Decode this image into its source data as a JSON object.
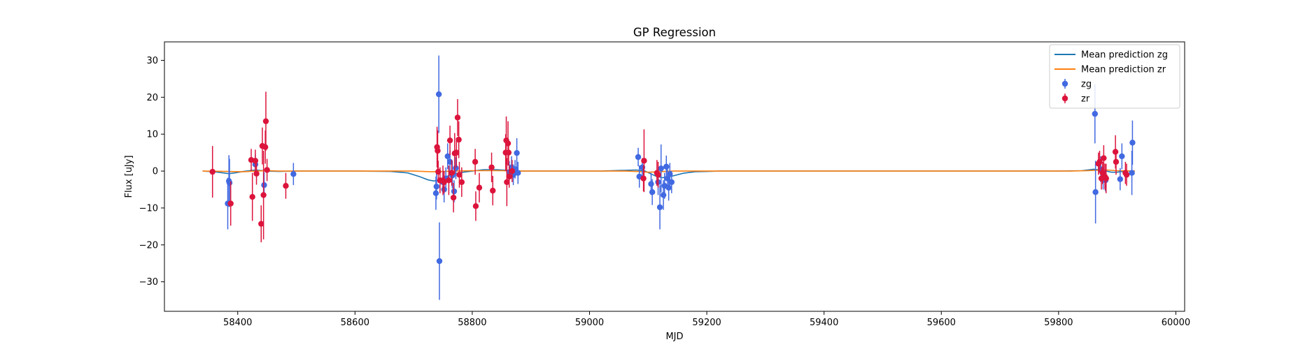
{
  "chart_data": {
    "type": "scatter",
    "title": "GP Regression",
    "xlabel": "MJD",
    "ylabel": "Flux [uJy]",
    "xlim": [
      58275,
      60015
    ],
    "ylim": [
      -38,
      35
    ],
    "xticks": [
      58400,
      58600,
      58800,
      59000,
      59200,
      59400,
      59600,
      59800,
      60000
    ],
    "yticks": [
      -30,
      -20,
      -10,
      0,
      10,
      20,
      30
    ],
    "grid": false,
    "legend_position": "top-right",
    "legend": [
      {
        "label": "Mean prediction zg",
        "kind": "line",
        "color": "#1f77b4"
      },
      {
        "label": "Mean prediction zr",
        "kind": "line",
        "color": "#ff7f0e"
      },
      {
        "label": "zg",
        "kind": "errorbar",
        "color": "#4169e1"
      },
      {
        "label": "zr",
        "kind": "errorbar",
        "color": "#dc143c"
      }
    ],
    "mean_lines": [
      {
        "name": "Mean prediction zg",
        "color": "#1f77b4",
        "points": [
          [
            58340,
            0.0
          ],
          [
            58360,
            -0.2
          ],
          [
            58375,
            -0.5
          ],
          [
            58385,
            -0.7
          ],
          [
            58395,
            -0.5
          ],
          [
            58410,
            -0.1
          ],
          [
            58430,
            0.3
          ],
          [
            58450,
            0.0
          ],
          [
            58470,
            -0.1
          ],
          [
            58500,
            0.0
          ],
          [
            58600,
            0.0
          ],
          [
            58660,
            -0.1
          ],
          [
            58690,
            -0.5
          ],
          [
            58710,
            -1.5
          ],
          [
            58725,
            -2.4
          ],
          [
            58735,
            -2.7
          ],
          [
            58745,
            -2.5
          ],
          [
            58760,
            -1.2
          ],
          [
            58780,
            -0.4
          ],
          [
            58800,
            0.0
          ],
          [
            58820,
            0.4
          ],
          [
            58840,
            0.4
          ],
          [
            58860,
            0.2
          ],
          [
            58880,
            0.0
          ],
          [
            58950,
            0.0
          ],
          [
            59020,
            0.0
          ],
          [
            59060,
            0.2
          ],
          [
            59080,
            0.3
          ],
          [
            59095,
            0.0
          ],
          [
            59105,
            -0.8
          ],
          [
            59115,
            -1.5
          ],
          [
            59125,
            -1.8
          ],
          [
            59140,
            -1.4
          ],
          [
            59160,
            -0.6
          ],
          [
            59180,
            -0.2
          ],
          [
            59220,
            0.0
          ],
          [
            59800,
            0.0
          ],
          [
            59840,
            0.1
          ],
          [
            59860,
            0.5
          ],
          [
            59875,
            0.2
          ],
          [
            59890,
            -0.3
          ],
          [
            59900,
            -0.3
          ],
          [
            59915,
            0.0
          ],
          [
            59930,
            0.0
          ]
        ]
      },
      {
        "name": "Mean prediction zr",
        "color": "#ff7f0e",
        "points": [
          [
            58340,
            0.0
          ],
          [
            58380,
            -0.1
          ],
          [
            58410,
            -0.2
          ],
          [
            58430,
            0.0
          ],
          [
            58450,
            0.1
          ],
          [
            58470,
            0.0
          ],
          [
            58500,
            0.0
          ],
          [
            58700,
            0.0
          ],
          [
            58730,
            -0.2
          ],
          [
            58750,
            -0.1
          ],
          [
            58770,
            0.0
          ],
          [
            58800,
            0.1
          ],
          [
            58850,
            0.1
          ],
          [
            58880,
            0.0
          ],
          [
            59060,
            0.0
          ],
          [
            59080,
            -0.1
          ],
          [
            59100,
            -0.3
          ],
          [
            59120,
            -0.2
          ],
          [
            59140,
            0.0
          ],
          [
            59820,
            0.0
          ],
          [
            59850,
            0.1
          ],
          [
            59880,
            0.3
          ],
          [
            59900,
            0.1
          ],
          [
            59930,
            0.0
          ]
        ]
      }
    ],
    "series": [
      {
        "name": "zg",
        "color": "#4169e1",
        "points": [
          {
            "x": 58383,
            "y": -8.8,
            "err": 7.0
          },
          {
            "x": 58385,
            "y": -2.7,
            "err": 7.0
          },
          {
            "x": 58386,
            "y": -3.2,
            "err": 6.5
          },
          {
            "x": 58430,
            "y": 1.8,
            "err": 2.8
          },
          {
            "x": 58445,
            "y": -3.8,
            "err": 3.5
          },
          {
            "x": 58495,
            "y": -0.8,
            "err": 3.0
          },
          {
            "x": 58738,
            "y": -6.0,
            "err": 4.5
          },
          {
            "x": 58739,
            "y": -4.2,
            "err": 3.5
          },
          {
            "x": 58743,
            "y": 20.8,
            "err": 10.5
          },
          {
            "x": 58744,
            "y": -24.4,
            "err": 10.5
          },
          {
            "x": 58750,
            "y": -3.0,
            "err": 3.0
          },
          {
            "x": 58752,
            "y": -5.0,
            "err": 3.5
          },
          {
            "x": 58755,
            "y": -2.0,
            "err": 3.0
          },
          {
            "x": 58758,
            "y": 4.0,
            "err": 3.5
          },
          {
            "x": 58762,
            "y": 2.5,
            "err": 3.0
          },
          {
            "x": 58766,
            "y": -1.2,
            "err": 3.5
          },
          {
            "x": 58769,
            "y": -5.5,
            "err": 3.0
          },
          {
            "x": 58772,
            "y": 0.8,
            "err": 3.0
          },
          {
            "x": 58863,
            "y": -0.3,
            "err": 3.0
          },
          {
            "x": 58867,
            "y": 1.0,
            "err": 3.0
          },
          {
            "x": 58870,
            "y": -1.0,
            "err": 2.8
          },
          {
            "x": 58873,
            "y": 0.5,
            "err": 2.5
          },
          {
            "x": 58876,
            "y": 4.9,
            "err": 4.0
          },
          {
            "x": 58878,
            "y": -0.5,
            "err": 3.0
          },
          {
            "x": 59083,
            "y": 3.8,
            "err": 2.5
          },
          {
            "x": 59085,
            "y": -1.5,
            "err": 3.0
          },
          {
            "x": 59090,
            "y": 1.0,
            "err": 2.5
          },
          {
            "x": 59105,
            "y": -3.5,
            "err": 3.0
          },
          {
            "x": 59107,
            "y": -5.7,
            "err": 3.5
          },
          {
            "x": 59117,
            "y": -3.0,
            "err": 3.5
          },
          {
            "x": 59120,
            "y": -9.8,
            "err": 6.0
          },
          {
            "x": 59122,
            "y": 0.7,
            "err": 6.5
          },
          {
            "x": 59126,
            "y": -6.5,
            "err": 4.0
          },
          {
            "x": 59128,
            "y": -4.0,
            "err": 3.5
          },
          {
            "x": 59131,
            "y": 1.2,
            "err": 3.0
          },
          {
            "x": 59133,
            "y": -2.0,
            "err": 3.0
          },
          {
            "x": 59135,
            "y": -4.5,
            "err": 3.5
          },
          {
            "x": 59137,
            "y": -0.8,
            "err": 3.0
          },
          {
            "x": 59140,
            "y": -3.0,
            "err": 3.0
          },
          {
            "x": 59862,
            "y": 15.5,
            "err": 8.0
          },
          {
            "x": 59863,
            "y": -5.7,
            "err": 8.5
          },
          {
            "x": 59872,
            "y": 0.5,
            "err": 3.5
          },
          {
            "x": 59876,
            "y": -2.0,
            "err": 3.0
          },
          {
            "x": 59880,
            "y": -2.5,
            "err": 3.0
          },
          {
            "x": 59905,
            "y": -2.2,
            "err": 3.0
          },
          {
            "x": 59908,
            "y": 4.0,
            "err": 3.5
          },
          {
            "x": 59925,
            "y": -0.5,
            "err": 6.0
          },
          {
            "x": 59926,
            "y": 7.7,
            "err": 6.0
          }
        ]
      },
      {
        "name": "zr",
        "color": "#dc143c",
        "points": [
          {
            "x": 58357,
            "y": -0.2,
            "err": 7.0
          },
          {
            "x": 58388,
            "y": -8.8,
            "err": 6.0
          },
          {
            "x": 58423,
            "y": 3.0,
            "err": 3.0
          },
          {
            "x": 58425,
            "y": -7.0,
            "err": 6.5
          },
          {
            "x": 58430,
            "y": 2.8,
            "err": 3.0
          },
          {
            "x": 58432,
            "y": -0.7,
            "err": 3.0
          },
          {
            "x": 58440,
            "y": -14.3,
            "err": 5.0
          },
          {
            "x": 58442,
            "y": 6.8,
            "err": 5.0
          },
          {
            "x": 58444,
            "y": -6.5,
            "err": 12.0
          },
          {
            "x": 58447,
            "y": 6.5,
            "err": 4.5
          },
          {
            "x": 58448,
            "y": 13.5,
            "err": 8.0
          },
          {
            "x": 58450,
            "y": 0.3,
            "err": 3.0
          },
          {
            "x": 58482,
            "y": -4.0,
            "err": 3.5
          },
          {
            "x": 58740,
            "y": 6.5,
            "err": 5.5
          },
          {
            "x": 58741,
            "y": 5.5,
            "err": 5.5
          },
          {
            "x": 58742,
            "y": -0.2,
            "err": 3.0
          },
          {
            "x": 58745,
            "y": -2.5,
            "err": 3.5
          },
          {
            "x": 58750,
            "y": -2.5,
            "err": 4.0
          },
          {
            "x": 58752,
            "y": -3.0,
            "err": 3.0
          },
          {
            "x": 58760,
            "y": -2.5,
            "err": 4.0
          },
          {
            "x": 58762,
            "y": 8.3,
            "err": 4.0
          },
          {
            "x": 58765,
            "y": -0.5,
            "err": 3.5
          },
          {
            "x": 58768,
            "y": -7.2,
            "err": 4.0
          },
          {
            "x": 58770,
            "y": 4.8,
            "err": 5.5
          },
          {
            "x": 58773,
            "y": 5.0,
            "err": 4.0
          },
          {
            "x": 58775,
            "y": 14.5,
            "err": 5.0
          },
          {
            "x": 58777,
            "y": 8.5,
            "err": 5.0
          },
          {
            "x": 58778,
            "y": -1.0,
            "err": 3.5
          },
          {
            "x": 58782,
            "y": -3.0,
            "err": 4.0
          },
          {
            "x": 58805,
            "y": 2.5,
            "err": 3.5
          },
          {
            "x": 58806,
            "y": -9.5,
            "err": 4.0
          },
          {
            "x": 58812,
            "y": -4.5,
            "err": 4.0
          },
          {
            "x": 58833,
            "y": 1.0,
            "err": 4.0
          },
          {
            "x": 58835,
            "y": -5.3,
            "err": 4.0
          },
          {
            "x": 58857,
            "y": 5.0,
            "err": 5.0
          },
          {
            "x": 58858,
            "y": 8.3,
            "err": 6.5
          },
          {
            "x": 58859,
            "y": -3.0,
            "err": 6.5
          },
          {
            "x": 58861,
            "y": 7.5,
            "err": 6.0
          },
          {
            "x": 58862,
            "y": 5.0,
            "err": 3.5
          },
          {
            "x": 58863,
            "y": -1.5,
            "err": 3.0
          },
          {
            "x": 58868,
            "y": 0.0,
            "err": 3.0
          },
          {
            "x": 59092,
            "y": -2.0,
            "err": 3.5
          },
          {
            "x": 59093,
            "y": 2.8,
            "err": 8.5
          },
          {
            "x": 59115,
            "y": -0.5,
            "err": 3.5
          },
          {
            "x": 59117,
            "y": -1.0,
            "err": 3.5
          },
          {
            "x": 59868,
            "y": 2.0,
            "err": 3.0
          },
          {
            "x": 59870,
            "y": 2.5,
            "err": 3.0
          },
          {
            "x": 59873,
            "y": -2.0,
            "err": 3.0
          },
          {
            "x": 59875,
            "y": -0.5,
            "err": 3.0
          },
          {
            "x": 59877,
            "y": 3.5,
            "err": 3.5
          },
          {
            "x": 59879,
            "y": -1.5,
            "err": 3.5
          },
          {
            "x": 59881,
            "y": -2.0,
            "err": 4.0
          },
          {
            "x": 59897,
            "y": 5.2,
            "err": 4.5
          },
          {
            "x": 59898,
            "y": 2.5,
            "err": 3.5
          },
          {
            "x": 59914,
            "y": -0.5,
            "err": 3.0
          },
          {
            "x": 59916,
            "y": -1.0,
            "err": 3.0
          }
        ]
      }
    ]
  }
}
